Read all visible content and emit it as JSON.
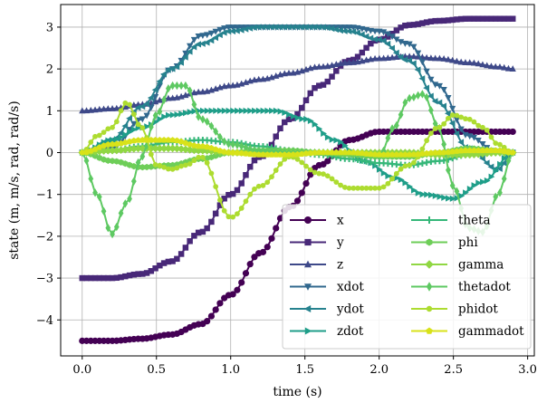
{
  "chart_data": {
    "type": "line",
    "title": "",
    "xlabel": "time (s)",
    "ylabel": "state (m, m/s, rad, rad/s)",
    "xlim": [
      -0.145,
      3.045
    ],
    "ylim": [
      -4.86,
      3.54
    ],
    "xticks": [
      0.0,
      0.5,
      1.0,
      1.5,
      2.0,
      2.5,
      3.0
    ],
    "xtick_labels": [
      "0.0",
      "0.5",
      "1.0",
      "1.5",
      "2.0",
      "2.5",
      "3.0"
    ],
    "yticks": [
      -4,
      -3,
      -2,
      -1,
      0,
      1,
      2,
      3
    ],
    "ytick_labels": [
      "−4",
      "−3",
      "−2",
      "−1",
      "0",
      "1",
      "2",
      "3"
    ],
    "grid": true,
    "legend_position": "lower-right",
    "legend_columns": 2,
    "series": [
      {
        "name": "x",
        "color": "#440154",
        "marker": "circle",
        "x": [
          0,
          0.2,
          0.4,
          0.6,
          0.8,
          1.0,
          1.2,
          1.4,
          1.6,
          1.8,
          2.0,
          2.2,
          2.4,
          2.6,
          2.8,
          2.9
        ],
        "y": [
          -4.5,
          -4.5,
          -4.45,
          -4.35,
          -4.1,
          -3.4,
          -2.4,
          -1.3,
          -0.3,
          0.3,
          0.5,
          0.5,
          0.5,
          0.5,
          0.5,
          0.5
        ]
      },
      {
        "name": "y",
        "color": "#482878",
        "marker": "square",
        "x": [
          0,
          0.2,
          0.4,
          0.6,
          0.8,
          1.0,
          1.2,
          1.4,
          1.6,
          1.8,
          2.0,
          2.2,
          2.4,
          2.6,
          2.8,
          2.9
        ],
        "y": [
          -3.0,
          -3.0,
          -2.9,
          -2.6,
          -1.9,
          -1.0,
          -0.1,
          0.8,
          1.6,
          2.2,
          2.7,
          3.05,
          3.15,
          3.2,
          3.2,
          3.2
        ]
      },
      {
        "name": "z",
        "color": "#3e4989",
        "marker": "triangle-up",
        "x": [
          0,
          0.2,
          0.4,
          0.6,
          0.8,
          1.0,
          1.2,
          1.4,
          1.6,
          1.8,
          2.0,
          2.2,
          2.4,
          2.6,
          2.8,
          2.9
        ],
        "y": [
          1.0,
          1.05,
          1.15,
          1.3,
          1.45,
          1.6,
          1.75,
          1.9,
          2.05,
          2.15,
          2.25,
          2.3,
          2.25,
          2.15,
          2.05,
          2.0
        ]
      },
      {
        "name": "xdot",
        "color": "#31688e",
        "marker": "triangle-down",
        "x": [
          0,
          0.2,
          0.4,
          0.6,
          0.8,
          1.0,
          1.2,
          1.4,
          1.6,
          1.8,
          2.0,
          2.2,
          2.4,
          2.6,
          2.8,
          2.9
        ],
        "y": [
          0.0,
          0.1,
          0.8,
          2.0,
          2.8,
          3.0,
          3.0,
          3.0,
          3.0,
          3.0,
          2.9,
          2.6,
          1.6,
          0.4,
          0.0,
          0.0
        ]
      },
      {
        "name": "ydot",
        "color": "#26828e",
        "marker": "triangle-left",
        "x": [
          0,
          0.2,
          0.4,
          0.6,
          0.8,
          1.0,
          1.2,
          1.4,
          1.6,
          1.8,
          2.0,
          2.2,
          2.4,
          2.6,
          2.8,
          2.9
        ],
        "y": [
          0.0,
          0.3,
          1.1,
          2.0,
          2.6,
          2.9,
          3.0,
          3.0,
          3.0,
          2.9,
          2.7,
          2.2,
          1.2,
          0.1,
          -0.4,
          0.0
        ]
      },
      {
        "name": "zdot",
        "color": "#1f9e89",
        "marker": "triangle-right",
        "x": [
          0,
          0.2,
          0.4,
          0.6,
          0.8,
          1.0,
          1.1,
          1.3,
          1.5,
          1.7,
          1.9,
          2.1,
          2.3,
          2.5,
          2.7,
          2.9
        ],
        "y": [
          0.0,
          0.3,
          0.6,
          0.9,
          1.0,
          1.0,
          1.0,
          1.0,
          0.8,
          0.3,
          -0.2,
          -0.6,
          -1.0,
          -1.1,
          -0.7,
          0.0
        ]
      },
      {
        "name": "theta",
        "color": "#35b779",
        "marker": "plus",
        "x": [
          0,
          0.2,
          0.4,
          0.6,
          0.8,
          1.0,
          1.2,
          1.4,
          1.6,
          1.8,
          2.0,
          2.2,
          2.4,
          2.6,
          2.8,
          2.9
        ],
        "y": [
          0.0,
          0.05,
          0.15,
          0.25,
          0.3,
          0.25,
          0.15,
          0.05,
          -0.05,
          -0.15,
          -0.25,
          -0.3,
          -0.2,
          -0.05,
          0.0,
          0.0
        ]
      },
      {
        "name": "phi",
        "color": "#6ece58",
        "marker": "hexagon",
        "x": [
          0,
          0.2,
          0.4,
          0.6,
          0.8,
          1.0,
          1.2,
          1.4,
          1.6,
          1.8,
          2.0,
          2.2,
          2.4,
          2.6,
          2.8,
          2.9
        ],
        "y": [
          0.0,
          -0.2,
          -0.35,
          -0.3,
          -0.15,
          0.0,
          0.05,
          0.05,
          0.0,
          -0.05,
          -0.1,
          -0.1,
          0.0,
          0.1,
          0.05,
          0.0
        ]
      },
      {
        "name": "gamma",
        "color": "#90d743",
        "marker": "diamond",
        "x": [
          0,
          0.2,
          0.4,
          0.6,
          0.8,
          1.0,
          1.2,
          1.4,
          1.6,
          1.8,
          2.0,
          2.2,
          2.4,
          2.6,
          2.8,
          2.9
        ],
        "y": [
          0.0,
          0.05,
          0.1,
          0.1,
          0.05,
          0.0,
          0.0,
          0.0,
          0.0,
          0.0,
          0.0,
          0.0,
          -0.05,
          -0.05,
          0.0,
          0.0
        ]
      },
      {
        "name": "thetadot",
        "color": "#5ec962",
        "marker": "thin-diamond",
        "x": [
          0,
          0.1,
          0.2,
          0.3,
          0.4,
          0.5,
          0.6,
          0.7,
          0.8,
          1.0,
          1.2,
          1.4,
          1.6,
          1.8,
          2.0,
          2.1,
          2.2,
          2.3,
          2.4,
          2.5,
          2.6,
          2.7,
          2.8,
          2.9
        ],
        "y": [
          0.0,
          -1.0,
          -1.95,
          -1.2,
          -0.1,
          0.9,
          1.6,
          1.6,
          0.8,
          0.2,
          0.05,
          0.0,
          0.0,
          0.0,
          -0.1,
          0.6,
          1.3,
          1.4,
          0.6,
          -0.8,
          -1.8,
          -1.9,
          -1.0,
          0.0
        ]
      },
      {
        "name": "phidot",
        "color": "#addc30",
        "marker": "point",
        "x": [
          0,
          0.1,
          0.2,
          0.3,
          0.4,
          0.5,
          0.6,
          0.7,
          0.8,
          1.0,
          1.2,
          1.4,
          1.6,
          1.8,
          2.0,
          2.2,
          2.4,
          2.5,
          2.6,
          2.7,
          2.8,
          2.9
        ],
        "y": [
          0.0,
          0.4,
          0.6,
          1.2,
          0.6,
          -0.3,
          -0.4,
          -0.3,
          -0.1,
          -1.55,
          -0.8,
          -0.1,
          -0.5,
          -0.85,
          -0.85,
          -0.3,
          0.6,
          0.9,
          0.8,
          0.6,
          0.2,
          0.0
        ]
      },
      {
        "name": "gammadot",
        "color": "#d8e219",
        "marker": "pentagon",
        "x": [
          0,
          0.2,
          0.4,
          0.6,
          0.8,
          1.0,
          1.2,
          1.4,
          1.6,
          1.8,
          2.0,
          2.2,
          2.4,
          2.6,
          2.8,
          2.9
        ],
        "y": [
          0.0,
          0.2,
          0.3,
          0.3,
          0.15,
          0.0,
          -0.05,
          -0.05,
          0.0,
          0.0,
          -0.05,
          -0.05,
          0.0,
          0.05,
          0.05,
          0.0
        ]
      }
    ]
  }
}
